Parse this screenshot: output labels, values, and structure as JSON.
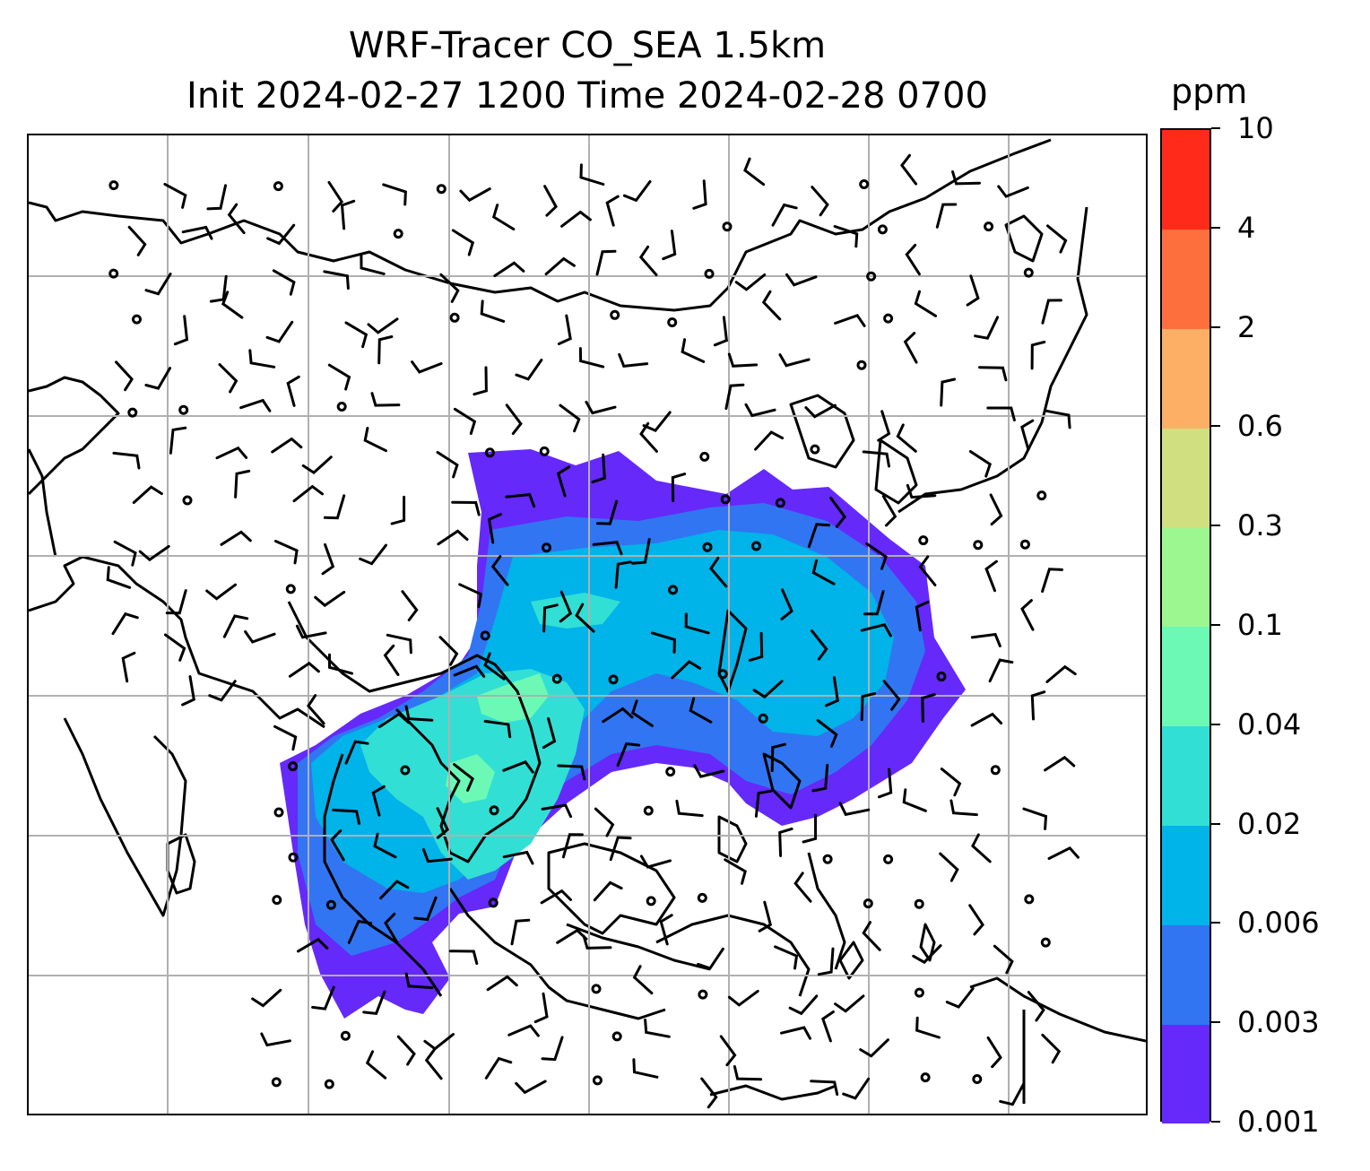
{
  "title": {
    "line1": "WRF-Tracer CO_SEA 1.5km",
    "line2": "Init 2024-02-27 1200 Time 2024-02-28 0700"
  },
  "colorbar": {
    "unit": "ppm",
    "levels": [
      "0.001",
      "0.003",
      "0.006",
      "0.02",
      "0.04",
      "0.1",
      "0.3",
      "0.6",
      "2",
      "4",
      "10"
    ],
    "colors": [
      "#6529fa",
      "#3175f3",
      "#00b3e8",
      "#31dfd5",
      "#6cf9b5",
      "#9df791",
      "#d0e081",
      "#fdb065",
      "#fe6f3e",
      "#ff2a1a"
    ]
  },
  "map": {
    "gridlines": true,
    "overlays": [
      "coastlines",
      "wind-barbs",
      "tracer-concentration"
    ]
  }
}
